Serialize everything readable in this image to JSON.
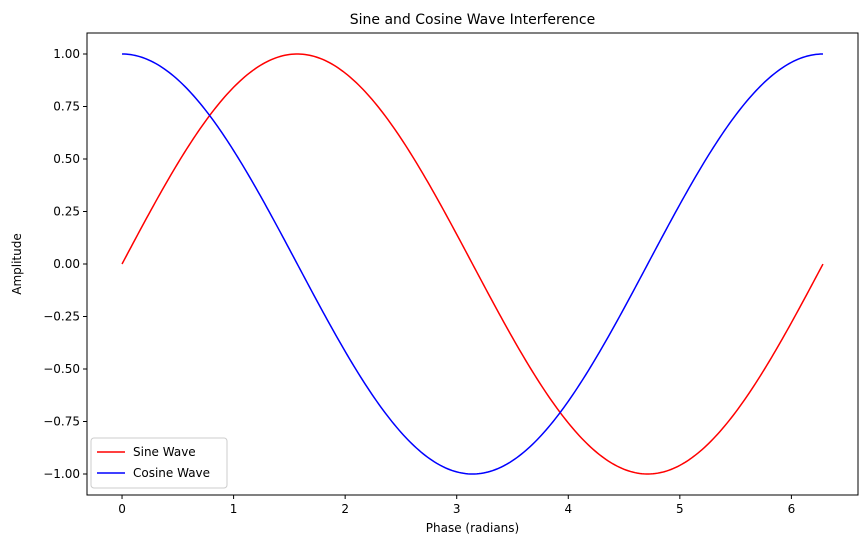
{
  "chart_data": {
    "type": "line",
    "title": "Sine and Cosine Wave Interference",
    "xlabel": "Phase (radians)",
    "ylabel": "Amplitude",
    "xlim": [
      -0.314,
      6.597
    ],
    "ylim": [
      -1.1,
      1.1
    ],
    "xticks": [
      0,
      1,
      2,
      3,
      4,
      5,
      6
    ],
    "xtick_labels": [
      "0",
      "1",
      "2",
      "3",
      "4",
      "5",
      "6"
    ],
    "yticks": [
      -1.0,
      -0.75,
      -0.5,
      -0.25,
      0.0,
      0.25,
      0.5,
      0.75,
      1.0
    ],
    "ytick_labels": [
      "−1.00",
      "−0.75",
      "−0.50",
      "−0.25",
      "0.00",
      "0.25",
      "0.50",
      "0.75",
      "1.00"
    ],
    "grid": false,
    "legend_position": "lower-left",
    "series": [
      {
        "name": "Sine Wave",
        "color": "#ff0000",
        "x": [
          0,
          0.314,
          0.628,
          0.942,
          1.257,
          1.571,
          1.885,
          2.199,
          2.513,
          2.827,
          3.142,
          3.456,
          3.77,
          4.084,
          4.398,
          4.712,
          5.027,
          5.341,
          5.655,
          5.969,
          6.283
        ],
        "y": [
          0.0,
          0.309,
          0.588,
          0.809,
          0.951,
          1.0,
          0.951,
          0.809,
          0.588,
          0.309,
          0.0,
          -0.309,
          -0.588,
          -0.809,
          -0.951,
          -1.0,
          -0.951,
          -0.809,
          -0.588,
          -0.309,
          0.0
        ]
      },
      {
        "name": "Cosine Wave",
        "color": "#0000ff",
        "x": [
          0,
          0.314,
          0.628,
          0.942,
          1.257,
          1.571,
          1.885,
          2.199,
          2.513,
          2.827,
          3.142,
          3.456,
          3.77,
          4.084,
          4.398,
          4.712,
          5.027,
          5.341,
          5.655,
          5.969,
          6.283
        ],
        "y": [
          1.0,
          0.951,
          0.809,
          0.588,
          0.309,
          0.0,
          -0.309,
          -0.588,
          -0.809,
          -0.951,
          -1.0,
          -0.951,
          -0.809,
          -0.588,
          -0.309,
          0.0,
          0.309,
          0.588,
          0.809,
          0.951,
          1.0
        ]
      }
    ]
  }
}
